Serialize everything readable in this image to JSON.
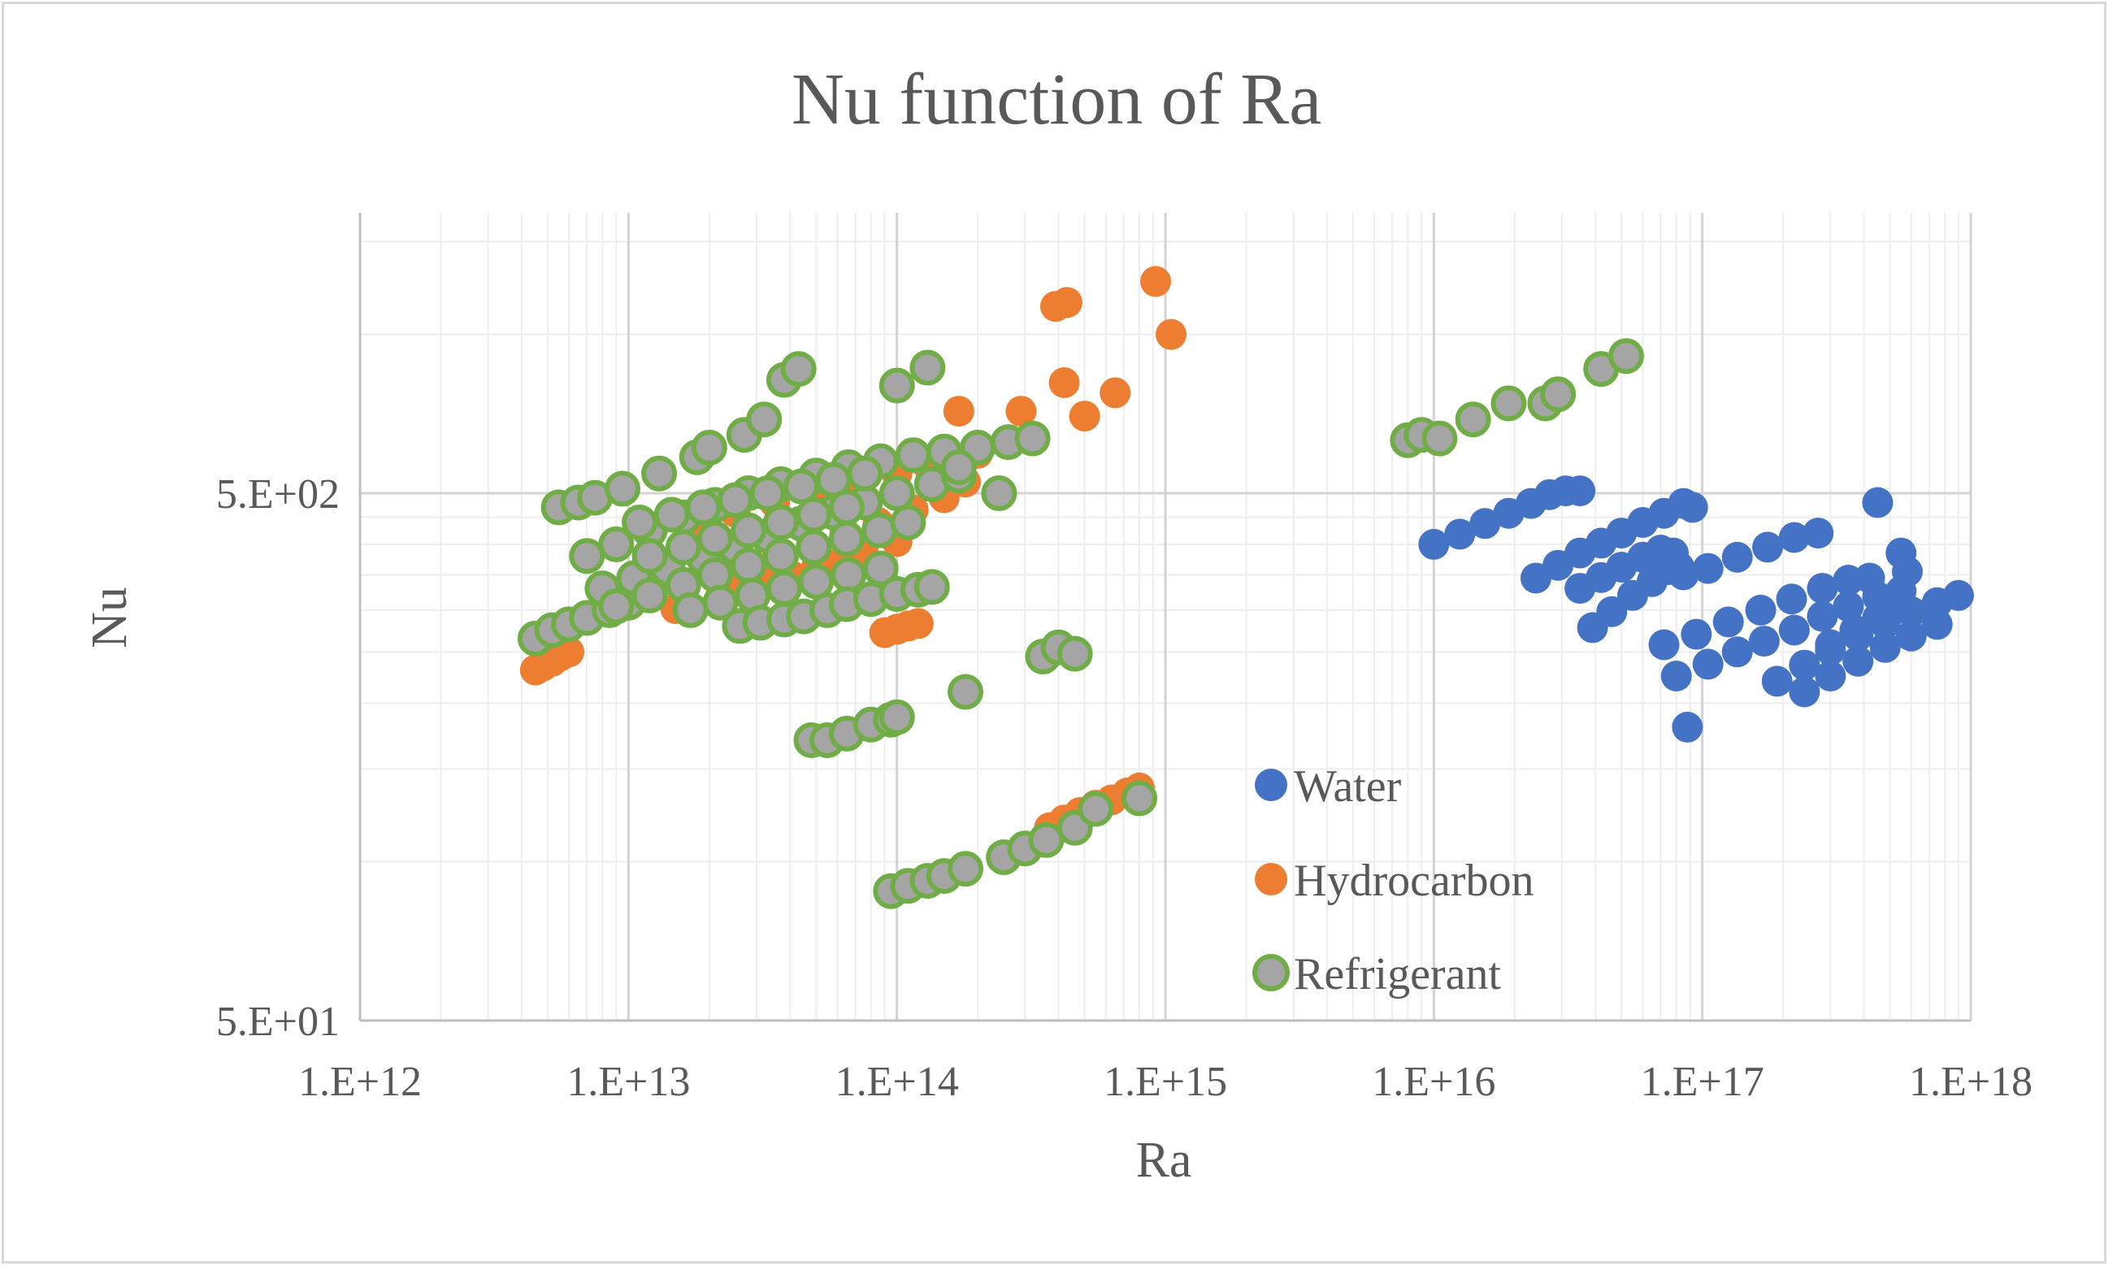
{
  "chart_data": {
    "type": "scatter",
    "title": "Nu function  of Ra",
    "xlabel": "Ra",
    "ylabel": "Nu",
    "xscale": "log",
    "yscale": "log",
    "xlim": [
      1000000000000.0,
      1e+18
    ],
    "ylim": [
      50,
      1700
    ],
    "x_ticks": [
      "1.E+12",
      "1.E+13",
      "1.E+14",
      "1.E+15",
      "1.E+16",
      "1.E+17",
      "1.E+18"
    ],
    "y_ticks": [
      "5.E+01",
      "5.E+02"
    ],
    "grid": true,
    "legend_position": "bottom-center",
    "series": [
      {
        "name": "Water",
        "color": "#4472c4",
        "marker": "filled-circle",
        "points": [
          [
            1e+16,
            400
          ],
          [
            1.25e+16,
            418
          ],
          [
            1.55e+16,
            438
          ],
          [
            1.9e+16,
            458
          ],
          [
            2.3e+16,
            478
          ],
          [
            2.7e+16,
            497
          ],
          [
            3.1e+16,
            505
          ],
          [
            3.5e+16,
            505
          ],
          [
            2.4e+16,
            345
          ],
          [
            2.9e+16,
            365
          ],
          [
            3.5e+16,
            385
          ],
          [
            4.2e+16,
            402
          ],
          [
            5e+16,
            420
          ],
          [
            6e+16,
            440
          ],
          [
            7.2e+16,
            458
          ],
          [
            8.5e+16,
            478
          ],
          [
            9.2e+16,
            470
          ],
          [
            3.5e+16,
            330
          ],
          [
            4.2e+16,
            346
          ],
          [
            5e+16,
            362
          ],
          [
            6e+16,
            378
          ],
          [
            7e+16,
            390
          ],
          [
            7.8e+16,
            385
          ],
          [
            8.2e+16,
            362
          ],
          [
            3.9e+16,
            278
          ],
          [
            4.6e+16,
            298
          ],
          [
            5.5e+16,
            320
          ],
          [
            6.5e+16,
            340
          ],
          [
            7.5e+16,
            358
          ],
          [
            8.5e+16,
            350
          ],
          [
            1.05e+17,
            360
          ],
          [
            1.35e+17,
            378
          ],
          [
            1.75e+17,
            395
          ],
          [
            2.2e+17,
            412
          ],
          [
            2.7e+17,
            420
          ],
          [
            7.2e+16,
            258
          ],
          [
            9.5e+16,
            270
          ],
          [
            1.25e+17,
            285
          ],
          [
            1.65e+17,
            300
          ],
          [
            2.15e+17,
            315
          ],
          [
            2.8e+17,
            330
          ],
          [
            3.5e+17,
            342
          ],
          [
            4.2e+17,
            345
          ],
          [
            8e+16,
            225
          ],
          [
            1.05e+17,
            237
          ],
          [
            1.35e+17,
            250
          ],
          [
            1.7e+17,
            262
          ],
          [
            2.2e+17,
            275
          ],
          [
            2.8e+17,
            292
          ],
          [
            3.5e+17,
            305
          ],
          [
            4.5e+17,
            318
          ],
          [
            5.5e+17,
            326
          ],
          [
            1.9e+17,
            220
          ],
          [
            2.4e+17,
            236
          ],
          [
            3e+17,
            252
          ],
          [
            3.8e+17,
            268
          ],
          [
            4.8e+17,
            283
          ],
          [
            6e+17,
            298
          ],
          [
            7.5e+17,
            310
          ],
          [
            9e+17,
            320
          ],
          [
            2.4e+17,
            210
          ],
          [
            3e+17,
            225
          ],
          [
            3.8e+17,
            240
          ],
          [
            4.8e+17,
            255
          ],
          [
            6e+17,
            268
          ],
          [
            7.5e+17,
            282
          ],
          [
            3e+17,
            258
          ],
          [
            3.7e+17,
            275
          ],
          [
            4.5e+17,
            290
          ],
          [
            5.3e+17,
            305
          ],
          [
            4.5e+17,
            480
          ],
          [
            5.5e+17,
            385
          ],
          [
            5.8e+17,
            355
          ],
          [
            8.8e+16,
            180
          ]
        ]
      },
      {
        "name": "Hydrocarbon",
        "color": "#ed7d31",
        "marker": "filled-circle",
        "points": [
          [
            4500000000000.0,
            231
          ],
          [
            4800000000000.0,
            235
          ],
          [
            5200000000000.0,
            240
          ],
          [
            5600000000000.0,
            246
          ],
          [
            6000000000000.0,
            250
          ],
          [
            10000000000000.0,
            320
          ],
          [
            15000000000000.0,
            340
          ],
          [
            20000000000000.0,
            355
          ],
          [
            27000000000000.0,
            370
          ],
          [
            36000000000000.0,
            385
          ],
          [
            48000000000000.0,
            400
          ],
          [
            64000000000000.0,
            420
          ],
          [
            85000000000000.0,
            440
          ],
          [
            115000000000000.0,
            465
          ],
          [
            150000000000000.0,
            490
          ],
          [
            180000000000000.0,
            525
          ],
          [
            15000000000000.0,
            302
          ],
          [
            22000000000000.0,
            318
          ],
          [
            30000000000000.0,
            334
          ],
          [
            40000000000000.0,
            350
          ],
          [
            55000000000000.0,
            367
          ],
          [
            75000000000000.0,
            385
          ],
          [
            100000000000000.0,
            405
          ],
          [
            25000000000000.0,
            330
          ],
          [
            35000000000000.0,
            345
          ],
          [
            50000000000000.0,
            360
          ],
          [
            70000000000000.0,
            375
          ],
          [
            12000000000000.0,
            420
          ],
          [
            18000000000000.0,
            440
          ],
          [
            25000000000000.0,
            460
          ],
          [
            35000000000000.0,
            480
          ],
          [
            50000000000000.0,
            500
          ],
          [
            70000000000000.0,
            520
          ],
          [
            100000000000000.0,
            545
          ],
          [
            130000000000000.0,
            565
          ],
          [
            90000000000000.0,
            272
          ],
          [
            100000000000000.0,
            276
          ],
          [
            110000000000000.0,
            280
          ],
          [
            120000000000000.0,
            283
          ],
          [
            370000000000000.0,
            116
          ],
          [
            420000000000000.0,
            120
          ],
          [
            480000000000000.0,
            124
          ],
          [
            550000000000000.0,
            128
          ],
          [
            630000000000000.0,
            131
          ],
          [
            720000000000000.0,
            135
          ],
          [
            800000000000000.0,
            138
          ],
          [
            170000000000000.0,
            715
          ],
          [
            200000000000000.0,
            595
          ],
          [
            290000000000000.0,
            715
          ],
          [
            390000000000000.0,
            1130
          ],
          [
            430000000000000.0,
            1150
          ],
          [
            420000000000000.0,
            810
          ],
          [
            500000000000000.0,
            700
          ],
          [
            650000000000000.0,
            775
          ],
          [
            920000000000000.0,
            1260
          ],
          [
            1050000000000000.0,
            1000
          ]
        ]
      },
      {
        "name": "Refrigerant",
        "color": "#a5a5a5",
        "edge": "#70ad47",
        "marker": "outlined-circle",
        "points": [
          [
            4500000000000.0,
            265
          ],
          [
            5200000000000.0,
            275
          ],
          [
            6000000000000.0,
            282
          ],
          [
            7000000000000.0,
            290
          ],
          [
            8500000000000.0,
            300
          ],
          [
            10000000000000.0,
            310
          ],
          [
            5500000000000.0,
            470
          ],
          [
            6500000000000.0,
            480
          ],
          [
            7500000000000.0,
            490
          ],
          [
            9500000000000.0,
            510
          ],
          [
            13000000000000.0,
            545
          ],
          [
            18000000000000.0,
            585
          ],
          [
            7000000000000.0,
            380
          ],
          [
            9000000000000.0,
            400
          ],
          [
            12000000000000.0,
            425
          ],
          [
            16000000000000.0,
            450
          ],
          [
            21000000000000.0,
            475
          ],
          [
            28000000000000.0,
            500
          ],
          [
            37000000000000.0,
            520
          ],
          [
            50000000000000.0,
            540
          ],
          [
            66000000000000.0,
            560
          ],
          [
            87000000000000.0,
            575
          ],
          [
            115000000000000.0,
            590
          ],
          [
            150000000000000.0,
            600
          ],
          [
            200000000000000.0,
            610
          ],
          [
            260000000000000.0,
            625
          ],
          [
            320000000000000.0,
            635
          ],
          [
            8000000000000.0,
            330
          ],
          [
            10500000000000.0,
            345
          ],
          [
            14000000000000.0,
            360
          ],
          [
            19000000000000.0,
            378
          ],
          [
            25000000000000.0,
            395
          ],
          [
            33000000000000.0,
            415
          ],
          [
            44000000000000.0,
            438
          ],
          [
            58000000000000.0,
            460
          ],
          [
            76000000000000.0,
            480
          ],
          [
            100000000000000.0,
            500
          ],
          [
            135000000000000.0,
            520
          ],
          [
            170000000000000.0,
            540
          ],
          [
            9000000000000.0,
            305
          ],
          [
            12000000000000.0,
            320
          ],
          [
            16000000000000.0,
            335
          ],
          [
            21000000000000.0,
            350
          ],
          [
            28000000000000.0,
            365
          ],
          [
            37000000000000.0,
            380
          ],
          [
            49000000000000.0,
            395
          ],
          [
            65000000000000.0,
            410
          ],
          [
            86000000000000.0,
            425
          ],
          [
            110000000000000.0,
            440
          ],
          [
            11000000000000.0,
            440
          ],
          [
            14500000000000.0,
            455
          ],
          [
            19000000000000.0,
            470
          ],
          [
            25000000000000.0,
            485
          ],
          [
            33000000000000.0,
            500
          ],
          [
            44000000000000.0,
            515
          ],
          [
            58000000000000.0,
            530
          ],
          [
            76000000000000.0,
            545
          ],
          [
            12000000000000.0,
            380
          ],
          [
            16000000000000.0,
            395
          ],
          [
            21000000000000.0,
            410
          ],
          [
            28000000000000.0,
            425
          ],
          [
            37000000000000.0,
            440
          ],
          [
            49000000000000.0,
            455
          ],
          [
            65000000000000.0,
            470
          ],
          [
            17000000000000.0,
            300
          ],
          [
            22000000000000.0,
            310
          ],
          [
            29000000000000.0,
            320
          ],
          [
            38000000000000.0,
            330
          ],
          [
            50000000000000.0,
            340
          ],
          [
            66000000000000.0,
            350
          ],
          [
            87000000000000.0,
            360
          ],
          [
            26000000000000.0,
            280
          ],
          [
            31000000000000.0,
            284
          ],
          [
            38000000000000.0,
            288
          ],
          [
            45000000000000.0,
            292
          ],
          [
            55000000000000.0,
            300
          ],
          [
            65000000000000.0,
            308
          ],
          [
            80000000000000.0,
            315
          ],
          [
            100000000000000.0,
            322
          ],
          [
            120000000000000.0,
            328
          ],
          [
            135000000000000.0,
            332
          ],
          [
            20000000000000.0,
            610
          ],
          [
            27000000000000.0,
            645
          ],
          [
            32000000000000.0,
            690
          ],
          [
            38000000000000.0,
            820
          ],
          [
            43000000000000.0,
            860
          ],
          [
            100000000000000.0,
            800
          ],
          [
            130000000000000.0,
            865
          ],
          [
            170000000000000.0,
            560
          ],
          [
            240000000000000.0,
            500
          ],
          [
            180000000000000.0,
            210
          ],
          [
            48000000000000.0,
            170
          ],
          [
            55000000000000.0,
            170
          ],
          [
            65000000000000.0,
            175
          ],
          [
            80000000000000.0,
            182
          ],
          [
            95000000000000.0,
            186
          ],
          [
            100000000000000.0,
            188
          ],
          [
            95000000000000.0,
            88
          ],
          [
            110000000000000.0,
            90
          ],
          [
            130000000000000.0,
            92
          ],
          [
            150000000000000.0,
            94
          ],
          [
            180000000000000.0,
            97
          ],
          [
            250000000000000.0,
            102
          ],
          [
            300000000000000.0,
            106
          ],
          [
            360000000000000.0,
            110
          ],
          [
            460000000000000.0,
            116
          ],
          [
            550000000000000.0,
            126
          ],
          [
            800000000000000.0,
            132
          ],
          [
            350000000000000.0,
            245
          ],
          [
            400000000000000.0,
            255
          ],
          [
            460000000000000.0,
            248
          ],
          [
            8000000000000000.0,
            630
          ],
          [
            9000000000000000.0,
            645
          ],
          [
            1.05e+16,
            635
          ],
          [
            1.4e+16,
            690
          ],
          [
            1.9e+16,
            740
          ],
          [
            2.6e+16,
            740
          ],
          [
            2.9e+16,
            770
          ],
          [
            4.2e+16,
            860
          ],
          [
            5.2e+16,
            910
          ]
        ]
      }
    ]
  }
}
